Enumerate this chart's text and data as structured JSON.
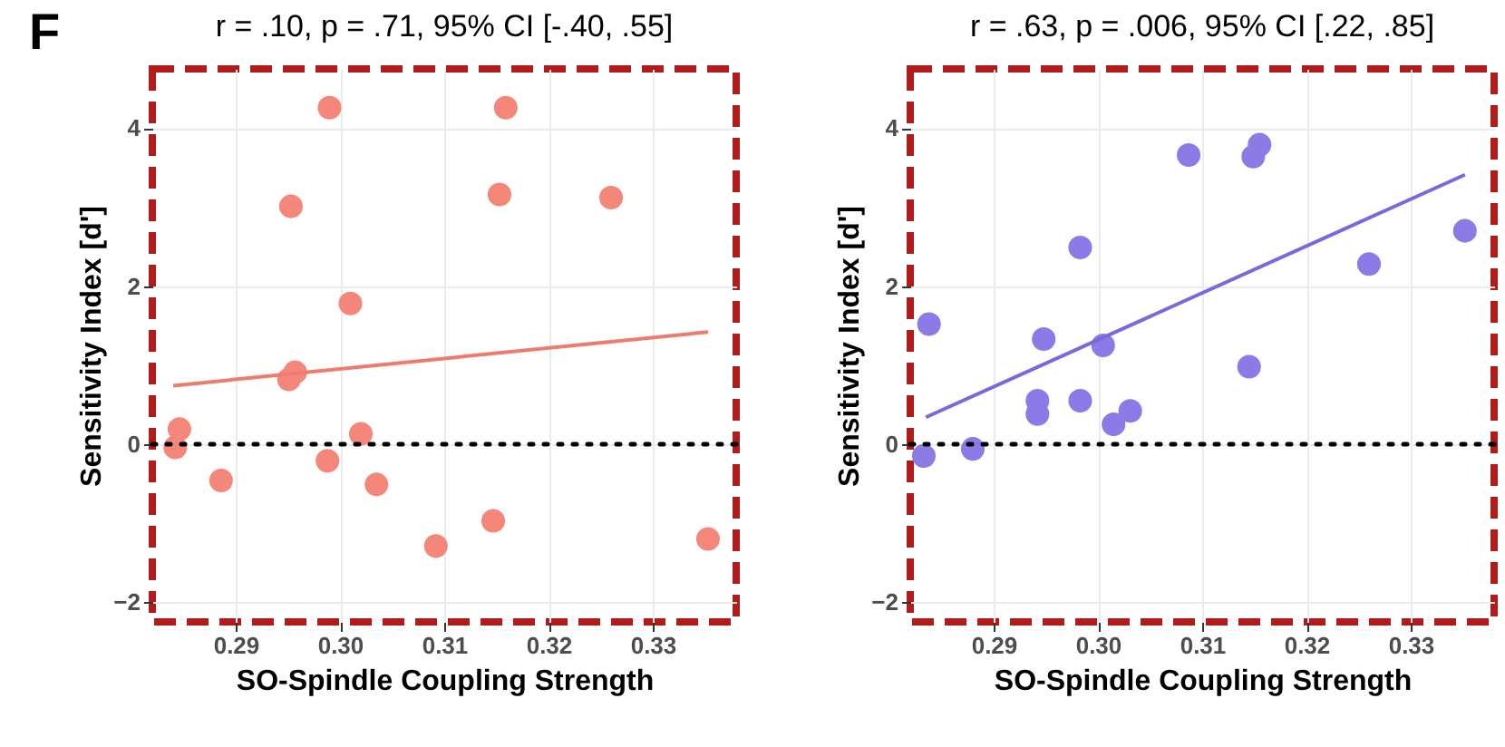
{
  "chart_data": [
    {
      "type": "scatter",
      "title": "r = .10, p = .71, 95% CI [-.40, .55]",
      "xlabel": "SO-Spindle Coupling Strength",
      "ylabel": "Sensitivity Index [d']",
      "annotations": [
        "F"
      ],
      "xlim": [
        0.282,
        0.338
      ],
      "ylim": [
        -2.25,
        4.75
      ],
      "xticks": [
        0.29,
        {
          "value": 0.3,
          "label": "0.30"
        },
        0.31,
        0.32,
        0.33
      ],
      "yticks": [
        -2,
        0,
        2,
        4
      ],
      "grid": true,
      "ref_lines": [
        {
          "axis": "y",
          "value": 0,
          "color": "#000000",
          "line_style": "dotted"
        }
      ],
      "series": [
        {
          "marker": "circle",
          "color": "#f4877a",
          "x": [
            0.2842,
            0.2846,
            0.2886,
            0.2953,
            0.2957,
            0.2951,
            0.299,
            0.2988,
            0.301,
            0.302,
            0.3035,
            0.3092,
            0.3147,
            0.3153,
            0.3159,
            0.326,
            0.3353
          ],
          "values": [
            -0.04,
            0.19,
            -0.46,
            3.01,
            0.91,
            0.82,
            4.26,
            -0.21,
            1.78,
            0.13,
            -0.51,
            -1.29,
            -0.97,
            3.16,
            4.26,
            3.12,
            -1.2
          ]
        },
        {
          "type": "line",
          "marker": "none",
          "color": "#ee7b6e",
          "x": [
            0.284,
            0.3353
          ],
          "values": [
            0.74,
            1.42
          ]
        }
      ]
    },
    {
      "type": "scatter",
      "title": "r = .63, p = .006, 95% CI [.22, .85]",
      "xlabel": "SO-Spindle Coupling Strength",
      "ylabel": "Sensitivity Index [d']",
      "xlim": [
        0.282,
        0.338
      ],
      "ylim": [
        -2.25,
        4.75
      ],
      "xticks": [
        0.29,
        {
          "value": 0.3,
          "label": "0.30"
        },
        0.31,
        0.32,
        0.33
      ],
      "yticks": [
        -2,
        0,
        2,
        4
      ],
      "grid": true,
      "ref_lines": [
        {
          "axis": "y",
          "value": 0,
          "color": "#000000",
          "line_style": "dotted"
        }
      ],
      "series": [
        {
          "marker": "circle",
          "color": "#8c7ae6",
          "x": [
            0.2833,
            0.288,
            0.2838,
            0.2948,
            0.2942,
            0.2942,
            0.2983,
            0.2983,
            0.3005,
            0.3015,
            0.3031,
            0.3087,
            0.3149,
            0.3155,
            0.3145,
            0.326,
            0.3352
          ],
          "values": [
            -0.15,
            -0.06,
            1.52,
            1.33,
            0.55,
            0.38,
            2.49,
            0.55,
            1.25,
            0.25,
            0.42,
            3.66,
            3.64,
            3.79,
            0.98,
            2.28,
            2.7
          ]
        },
        {
          "type": "line",
          "marker": "none",
          "color": "#7b68dd",
          "x": [
            0.2835,
            0.3352
          ],
          "values": [
            0.34,
            3.41
          ]
        }
      ]
    }
  ]
}
